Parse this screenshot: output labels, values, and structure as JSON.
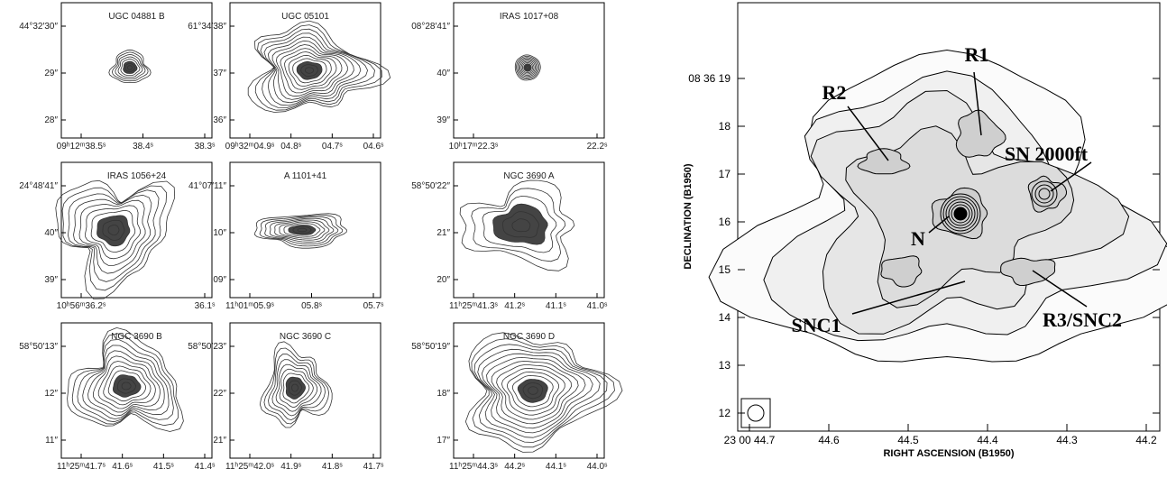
{
  "left_figure": {
    "panels": [
      {
        "label": "UGC 04881 B",
        "y_ticks": [
          "44°32′30″",
          "29″",
          "28″"
        ],
        "x_ticks": [
          "09ʰ12ᵐ38.5ˢ",
          "38.4ˢ",
          "38.3ˢ"
        ]
      },
      {
        "label": "UGC 05101",
        "y_ticks": [
          "61°34′38″",
          "37″",
          "36″"
        ],
        "x_ticks": [
          "09ʰ32ᵐ04.9ˢ",
          "04.8ˢ",
          "04.7ˢ",
          "04.6ˢ"
        ]
      },
      {
        "label": "IRAS 1017+08",
        "y_ticks": [
          "08°28′41″",
          "40″",
          "39″"
        ],
        "x_ticks": [
          "10ʰ17ᵐ22.3ˢ",
          "22.2ˢ"
        ]
      },
      {
        "label": "IRAS 1056+24",
        "y_ticks": [
          "24°48′41″",
          "40″",
          "39″"
        ],
        "x_ticks": [
          "10ʰ56ᵐ36.2ˢ",
          "36.1ˢ"
        ]
      },
      {
        "label": "A 1101+41",
        "y_ticks": [
          "41°07′11″",
          "10″",
          "09″"
        ],
        "x_ticks": [
          "11ʰ01ᵐ05.9ˢ",
          "05.8ˢ",
          "05.7ˢ"
        ]
      },
      {
        "label": "NGC 3690 A",
        "y_ticks": [
          "58°50′22″",
          "21″",
          "20″"
        ],
        "x_ticks": [
          "11ʰ25ᵐ41.3ˢ",
          "41.2ˢ",
          "41.1ˢ",
          "41.0ˢ"
        ]
      },
      {
        "label": "NGC 3690 B",
        "y_ticks": [
          "58°50′13″",
          "12″",
          "11″"
        ],
        "x_ticks": [
          "11ʰ25ᵐ41.7ˢ",
          "41.6ˢ",
          "41.5ˢ",
          "41.4ˢ"
        ]
      },
      {
        "label": "NGC 3690 C",
        "y_ticks": [
          "58°50′23″",
          "22″",
          "21″"
        ],
        "x_ticks": [
          "11ʰ25ᵐ42.0ˢ",
          "41.9ˢ",
          "41.8ˢ",
          "41.7ˢ"
        ]
      },
      {
        "label": "NGC 3690 D",
        "y_ticks": [
          "58°50′19″",
          "18″",
          "17″"
        ],
        "x_ticks": [
          "11ʰ25ᵐ44.3ˢ",
          "44.2ˢ",
          "44.1ˢ",
          "44.0ˢ"
        ]
      }
    ]
  },
  "right_figure": {
    "y_axis_label": "DECLINATION (B1950)",
    "x_axis_label": "RIGHT ASCENSION (B1950)",
    "y_ticks": [
      "08 36 19",
      "18",
      "17",
      "16",
      "15",
      "14",
      "13",
      "12"
    ],
    "x_ticks": [
      "23 00 44.7",
      "44.6",
      "44.5",
      "44.4",
      "44.3",
      "44.2"
    ],
    "annotations": [
      "R1",
      "R2",
      "SN 2000ft",
      "N",
      "SNC1",
      "R3/SNC2"
    ]
  }
}
